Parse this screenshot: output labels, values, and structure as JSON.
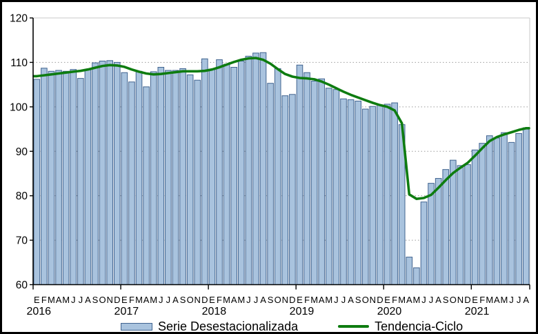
{
  "chart_data": {
    "type": "bar",
    "title": "",
    "xlabel": "",
    "ylabel": "",
    "ylim": [
      60,
      120
    ],
    "yticks": [
      "60",
      "70",
      "80",
      "90",
      "100",
      "110",
      "120"
    ],
    "grid": true,
    "legend_position": "bottom",
    "month_letters": "EFMAMJJASOND",
    "years": [
      {
        "label": "2016",
        "months": 12
      },
      {
        "label": "2017",
        "months": 12
      },
      {
        "label": "2018",
        "months": 12
      },
      {
        "label": "2019",
        "months": 12
      },
      {
        "label": "2020",
        "months": 12
      },
      {
        "label": "2021",
        "months": 8
      }
    ],
    "series": [
      {
        "name": "Serie Desestacionalizada",
        "type": "bar",
        "values": [
          106.2,
          108.7,
          108.0,
          108.2,
          108.0,
          108.4,
          106.4,
          108.3,
          109.9,
          110.3,
          110.4,
          110.0,
          107.7,
          105.6,
          108.0,
          104.5,
          107.9,
          108.9,
          108.2,
          108.2,
          108.6,
          107.2,
          106.0,
          110.8,
          108.5,
          110.6,
          109.6,
          108.9,
          110.3,
          111.4,
          112.1,
          112.2,
          105.3,
          108.6,
          102.5,
          102.8,
          109.4,
          107.7,
          105.8,
          106.3,
          104.2,
          103.9,
          101.8,
          101.6,
          101.3,
          99.5,
          100.1,
          100.4,
          100.6,
          100.9,
          96.0,
          66.2,
          63.8,
          78.6,
          82.8,
          83.9,
          85.9,
          88.0,
          86.8,
          87.0,
          90.3,
          91.8,
          93.5,
          93.0,
          94.2,
          92.0,
          94.0,
          95.3
        ]
      },
      {
        "name": "Tendencia-Ciclo",
        "type": "line",
        "values": [
          106.9,
          107.1,
          107.3,
          107.5,
          107.7,
          107.9,
          108.1,
          108.4,
          108.8,
          109.2,
          109.4,
          109.3,
          109.0,
          108.4,
          107.9,
          107.5,
          107.3,
          107.4,
          107.6,
          107.8,
          108.0,
          108.0,
          108.0,
          108.1,
          108.4,
          108.9,
          109.5,
          110.1,
          110.6,
          110.9,
          111.0,
          110.6,
          109.7,
          108.5,
          107.4,
          106.8,
          106.5,
          106.4,
          106.2,
          105.7,
          105.0,
          104.2,
          103.4,
          102.7,
          102.1,
          101.5,
          100.9,
          100.4,
          100.0,
          99.2,
          96.3,
          80.3,
          79.3,
          79.5,
          80.2,
          81.8,
          83.5,
          85.1,
          86.3,
          87.4,
          89.0,
          90.7,
          92.3,
          93.2,
          93.8,
          94.3,
          94.8,
          95.2
        ]
      }
    ],
    "colors": {
      "bar_fill": "#a9c3de",
      "bar_stroke": "#40638f",
      "trend_line": "#0e7c10",
      "axis": "#000000",
      "gridline": "#9a9a9a",
      "text": "#000000"
    }
  },
  "legend": {
    "bar_label": "Serie Desestacionalizada",
    "line_label": "Tendencia-Ciclo"
  }
}
